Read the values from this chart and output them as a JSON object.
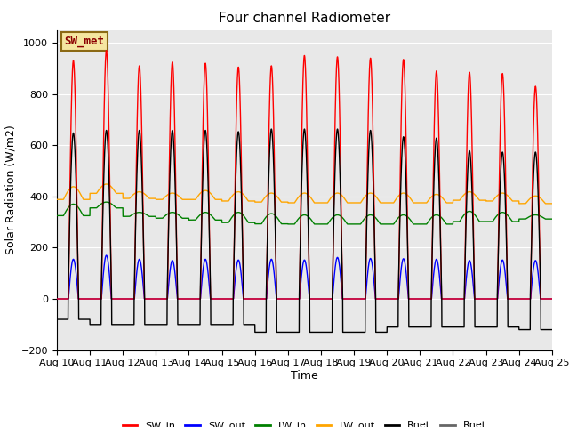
{
  "title": "Four channel Radiometer",
  "xlabel": "Time",
  "ylabel": "Solar Radiation (W/m2)",
  "ylim": [
    -200,
    1050
  ],
  "xlim": [
    0,
    15
  ],
  "background_color": "#e8e8e8",
  "annotation_text": "SW_met",
  "annotation_bg": "#f5e6a0",
  "annotation_border": "#8B6914",
  "x_tick_labels": [
    "Aug 10",
    "Aug 11",
    "Aug 12",
    "Aug 13",
    "Aug 14",
    "Aug 15",
    "Aug 16",
    "Aug 17",
    "Aug 18",
    "Aug 19",
    "Aug 20",
    "Aug 21",
    "Aug 22",
    "Aug 23",
    "Aug 24",
    "Aug 25"
  ],
  "legend_labels": [
    "SW_in",
    "SW_out",
    "LW_in",
    "LW_out",
    "Rnet",
    "Rnet"
  ],
  "legend_colors": [
    "red",
    "blue",
    "green",
    "orange",
    "black",
    "#555555"
  ],
  "num_days": 15,
  "sw_in_peak": [
    930,
    970,
    910,
    925,
    920,
    905,
    910,
    950,
    945,
    940,
    935,
    890,
    885,
    880,
    830
  ],
  "sw_out_peak": [
    155,
    170,
    155,
    150,
    155,
    152,
    155,
    152,
    162,
    158,
    157,
    155,
    150,
    152,
    150
  ],
  "lw_in_base": [
    325,
    355,
    322,
    315,
    308,
    298,
    293,
    292,
    292,
    292,
    292,
    292,
    302,
    302,
    312
  ],
  "lw_in_peak": [
    370,
    378,
    338,
    338,
    338,
    338,
    333,
    328,
    328,
    328,
    328,
    328,
    342,
    338,
    328
  ],
  "lw_out_base": [
    388,
    412,
    392,
    388,
    388,
    382,
    378,
    375,
    375,
    375,
    375,
    375,
    385,
    382,
    372
  ],
  "lw_out_peak": [
    438,
    448,
    418,
    413,
    423,
    418,
    413,
    413,
    413,
    413,
    413,
    408,
    418,
    413,
    402
  ],
  "rnet_peak": [
    648,
    658,
    658,
    658,
    658,
    653,
    663,
    663,
    663,
    658,
    633,
    628,
    578,
    573,
    573
  ],
  "rnet_night": [
    -80,
    -100,
    -100,
    -100,
    -100,
    -100,
    -130,
    -130,
    -130,
    -130,
    -110,
    -110,
    -110,
    -110,
    -120
  ]
}
